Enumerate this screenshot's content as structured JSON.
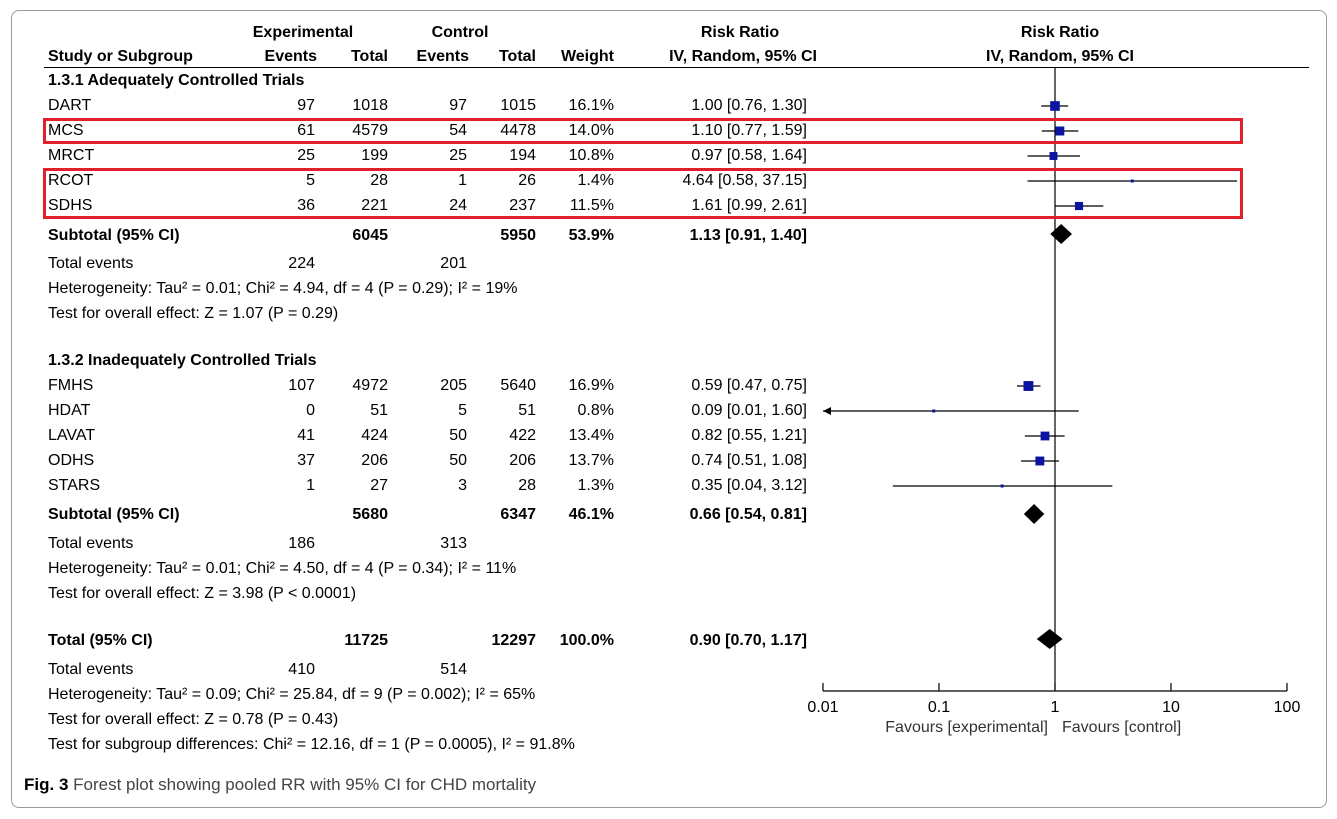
{
  "header": {
    "study_col": "Study or Subgroup",
    "exp_group": "Experimental",
    "ctrl_group": "Control",
    "events": "Events",
    "total": "Total",
    "weight": "Weight",
    "rr_title": "Risk Ratio",
    "rr_method": "IV, Random, 95% CI",
    "plot_title": "Risk Ratio",
    "plot_method": "IV, Random, 95% CI"
  },
  "groups": [
    {
      "title": "1.3.1 Adequately Controlled Trials",
      "studies": [
        {
          "name": "DART",
          "exp_events": "97",
          "exp_total": "1018",
          "ctrl_events": "97",
          "ctrl_total": "1015",
          "weight": "16.1%",
          "ci": "1.00 [0.76, 1.30]",
          "highlight": false
        },
        {
          "name": "MCS",
          "exp_events": "61",
          "exp_total": "4579",
          "ctrl_events": "54",
          "ctrl_total": "4478",
          "weight": "14.0%",
          "ci": "1.10 [0.77, 1.59]",
          "highlight": true
        },
        {
          "name": "MRCT",
          "exp_events": "25",
          "exp_total": "199",
          "ctrl_events": "25",
          "ctrl_total": "194",
          "weight": "10.8%",
          "ci": "0.97 [0.58, 1.64]",
          "highlight": false
        },
        {
          "name": "RCOT",
          "exp_events": "5",
          "exp_total": "28",
          "ctrl_events": "1",
          "ctrl_total": "26",
          "weight": "1.4%",
          "ci": "4.64 [0.58, 37.15]",
          "highlight": true
        },
        {
          "name": "SDHS",
          "exp_events": "36",
          "exp_total": "221",
          "ctrl_events": "24",
          "ctrl_total": "237",
          "weight": "11.5%",
          "ci": "1.61 [0.99, 2.61]",
          "highlight": true
        }
      ],
      "subtotal": {
        "label": "Subtotal (95% CI)",
        "exp_total": "6045",
        "ctrl_total": "5950",
        "weight": "53.9%",
        "ci": "1.13 [0.91, 1.40]"
      },
      "total_events": {
        "label": "Total events",
        "exp": "224",
        "ctrl": "201"
      },
      "heterogeneity": "Heterogeneity: Tau² = 0.01; Chi² = 4.94, df = 4 (P = 0.29); I² = 19%",
      "overall": "Test for overall effect: Z = 1.07 (P = 0.29)"
    },
    {
      "title": "1.3.2 Inadequately Controlled Trials",
      "studies": [
        {
          "name": "FMHS",
          "exp_events": "107",
          "exp_total": "4972",
          "ctrl_events": "205",
          "ctrl_total": "5640",
          "weight": "16.9%",
          "ci": "0.59 [0.47, 0.75]",
          "highlight": false
        },
        {
          "name": "HDAT",
          "exp_events": "0",
          "exp_total": "51",
          "ctrl_events": "5",
          "ctrl_total": "51",
          "weight": "0.8%",
          "ci": "0.09 [0.01, 1.60]",
          "highlight": false
        },
        {
          "name": "LAVAT",
          "exp_events": "41",
          "exp_total": "424",
          "ctrl_events": "50",
          "ctrl_total": "422",
          "weight": "13.4%",
          "ci": "0.82 [0.55, 1.21]",
          "highlight": false
        },
        {
          "name": "ODHS",
          "exp_events": "37",
          "exp_total": "206",
          "ctrl_events": "50",
          "ctrl_total": "206",
          "weight": "13.7%",
          "ci": "0.74 [0.51, 1.08]",
          "highlight": false
        },
        {
          "name": "STARS",
          "exp_events": "1",
          "exp_total": "27",
          "ctrl_events": "3",
          "ctrl_total": "28",
          "weight": "1.3%",
          "ci": "0.35 [0.04, 3.12]",
          "highlight": false
        }
      ],
      "subtotal": {
        "label": "Subtotal (95% CI)",
        "exp_total": "5680",
        "ctrl_total": "6347",
        "weight": "46.1%",
        "ci": "0.66 [0.54, 0.81]"
      },
      "total_events": {
        "label": "Total events",
        "exp": "186",
        "ctrl": "313"
      },
      "heterogeneity": "Heterogeneity: Tau² = 0.01; Chi² = 4.50, df = 4 (P = 0.34); I² = 11%",
      "overall": "Test for overall effect: Z = 3.98 (P < 0.0001)"
    }
  ],
  "total": {
    "label": "Total (95% CI)",
    "exp_total": "11725",
    "ctrl_total": "12297",
    "weight": "100.0%",
    "ci": "0.90 [0.70, 1.17]"
  },
  "total_events": {
    "label": "Total events",
    "exp": "410",
    "ctrl": "514"
  },
  "heterogeneity": "Heterogeneity: Tau² = 0.09; Chi² = 25.84, df = 9 (P = 0.002); I² = 65%",
  "overall": "Test for overall effect: Z = 0.78 (P = 0.43)",
  "subgroup_diff": "Test for subgroup differences: Chi² = 12.16, df = 1 (P = 0.0005), I² = 91.8%",
  "caption": {
    "label": "Fig. 3",
    "text": " Forest plot showing pooled RR with 95% CI for CHD mortality"
  },
  "colors": {
    "marker": "#0a14a0",
    "highlight": "#e0202a",
    "diamond": "#000000"
  },
  "chart_data": {
    "type": "forest",
    "xscale": "log",
    "xlim": [
      0.01,
      100
    ],
    "ticks": [
      0.01,
      0.1,
      1,
      10,
      100
    ],
    "tick_labels": [
      "0.01",
      "0.1",
      "1",
      "10",
      "100"
    ],
    "favours_left": "Favours [experimental]",
    "favours_right": "Favours [control]",
    "studies": [
      {
        "name": "DART",
        "rr": 1.0,
        "lo": 0.76,
        "hi": 1.3,
        "weight": 16.1
      },
      {
        "name": "MCS",
        "rr": 1.1,
        "lo": 0.77,
        "hi": 1.59,
        "weight": 14.0
      },
      {
        "name": "MRCT",
        "rr": 0.97,
        "lo": 0.58,
        "hi": 1.64,
        "weight": 10.8
      },
      {
        "name": "RCOT",
        "rr": 4.64,
        "lo": 0.58,
        "hi": 37.15,
        "weight": 1.4
      },
      {
        "name": "SDHS",
        "rr": 1.61,
        "lo": 0.99,
        "hi": 2.61,
        "weight": 11.5
      },
      {
        "name": "FMHS",
        "rr": 0.59,
        "lo": 0.47,
        "hi": 0.75,
        "weight": 16.9
      },
      {
        "name": "HDAT",
        "rr": 0.09,
        "lo": 0.01,
        "hi": 1.6,
        "weight": 0.8
      },
      {
        "name": "LAVAT",
        "rr": 0.82,
        "lo": 0.55,
        "hi": 1.21,
        "weight": 13.4
      },
      {
        "name": "ODHS",
        "rr": 0.74,
        "lo": 0.51,
        "hi": 1.08,
        "weight": 13.7
      },
      {
        "name": "STARS",
        "rr": 0.35,
        "lo": 0.04,
        "hi": 3.12,
        "weight": 1.3
      }
    ],
    "pooled": [
      {
        "name": "Subtotal 1.3.1",
        "rr": 1.13,
        "lo": 0.91,
        "hi": 1.4
      },
      {
        "name": "Subtotal 1.3.2",
        "rr": 0.66,
        "lo": 0.54,
        "hi": 0.81
      },
      {
        "name": "Total",
        "rr": 0.9,
        "lo": 0.7,
        "hi": 1.17
      }
    ]
  }
}
